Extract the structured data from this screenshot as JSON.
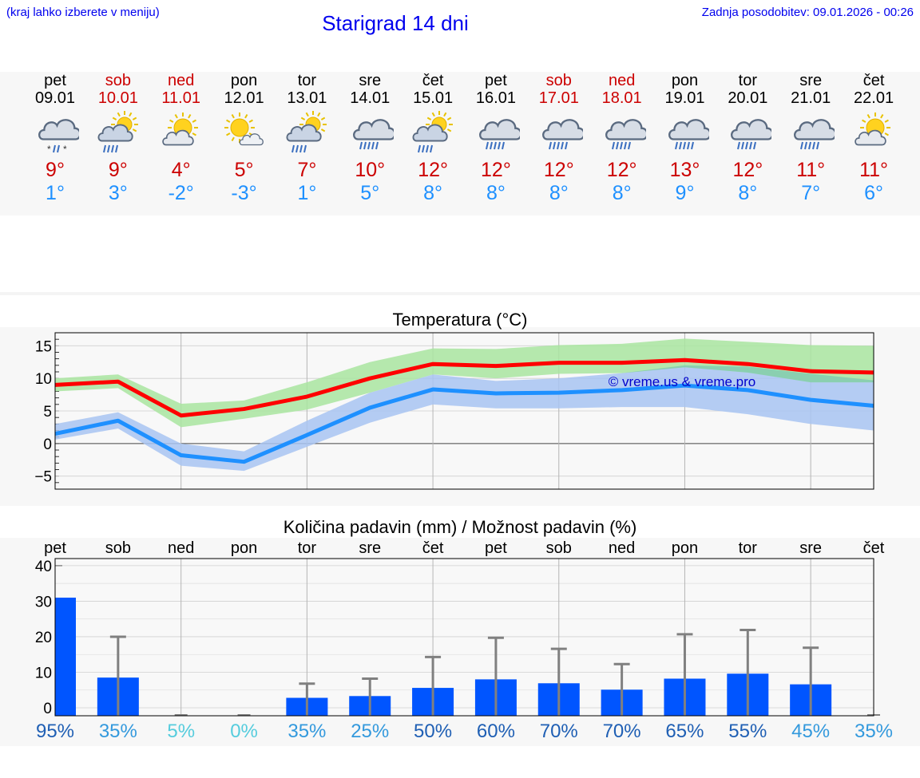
{
  "header": {
    "note_left": "(kraj lahko izberete v meniju)",
    "title": "Starigrad 14 dni",
    "note_right": "Zadnja posodobitev: 09.01.2026 - 00:26"
  },
  "days": [
    {
      "name": "pet",
      "date": "09.01",
      "tmax": "9°",
      "tmin": "1°",
      "weekend": false,
      "icon": "cloud-snow-rain-icon"
    },
    {
      "name": "sob",
      "date": "10.01",
      "tmax": "9°",
      "tmin": "3°",
      "weekend": true,
      "icon": "sun-cloud-rain-icon"
    },
    {
      "name": "ned",
      "date": "11.01",
      "tmax": "4°",
      "tmin": "-2°",
      "weekend": true,
      "icon": "sun-cloud-icon"
    },
    {
      "name": "pon",
      "date": "12.01",
      "tmax": "5°",
      "tmin": "-3°",
      "weekend": false,
      "icon": "sun-small-cloud-icon"
    },
    {
      "name": "tor",
      "date": "13.01",
      "tmax": "7°",
      "tmin": "1°",
      "weekend": false,
      "icon": "sun-cloud-rain-icon"
    },
    {
      "name": "sre",
      "date": "14.01",
      "tmax": "10°",
      "tmin": "5°",
      "weekend": false,
      "icon": "cloud-rain-icon"
    },
    {
      "name": "čet",
      "date": "15.01",
      "tmax": "12°",
      "tmin": "8°",
      "weekend": false,
      "icon": "sun-cloud-rain-icon"
    },
    {
      "name": "pet",
      "date": "16.01",
      "tmax": "12°",
      "tmin": "8°",
      "weekend": false,
      "icon": "cloud-rain-icon"
    },
    {
      "name": "sob",
      "date": "17.01",
      "tmax": "12°",
      "tmin": "8°",
      "weekend": true,
      "icon": "cloud-rain-icon"
    },
    {
      "name": "ned",
      "date": "18.01",
      "tmax": "12°",
      "tmin": "8°",
      "weekend": true,
      "icon": "cloud-rain-icon"
    },
    {
      "name": "pon",
      "date": "19.01",
      "tmax": "13°",
      "tmin": "9°",
      "weekend": false,
      "icon": "cloud-rain-icon"
    },
    {
      "name": "tor",
      "date": "20.01",
      "tmax": "12°",
      "tmin": "8°",
      "weekend": false,
      "icon": "cloud-rain-icon"
    },
    {
      "name": "sre",
      "date": "21.01",
      "tmax": "11°",
      "tmin": "7°",
      "weekend": false,
      "icon": "cloud-rain-icon"
    },
    {
      "name": "čet",
      "date": "22.01",
      "tmax": "11°",
      "tmin": "6°",
      "weekend": false,
      "icon": "sun-cloud-icon"
    }
  ],
  "colors": {
    "max_line": "#ff0000",
    "min_line": "#1e90ff",
    "max_band": "#a9e5a0",
    "min_band": "#a8c4f2",
    "overlap_band": "#7cc7b0",
    "precip_bar": "#0055ff",
    "error_bar": "#808080",
    "pct_high": "#1f5fb4",
    "pct_mid": "#3399dd",
    "pct_low": "#55ccdd"
  },
  "chart_data": [
    {
      "type": "line",
      "title": "Temperatura (°C)",
      "xlabel": "",
      "ylabel": "",
      "x": [
        "09.01",
        "10.01",
        "11.01",
        "12.01",
        "13.01",
        "14.01",
        "15.01",
        "16.01",
        "17.01",
        "18.01",
        "19.01",
        "20.01",
        "21.01",
        "22.01"
      ],
      "ylim": [
        -7,
        17
      ],
      "yticks": [
        -5,
        0,
        5,
        10,
        15
      ],
      "ytick_labels": [
        "−5",
        "0",
        "5",
        "10",
        "15"
      ],
      "grid": true,
      "watermark": "© vreme.us & vreme.pro",
      "series": [
        {
          "name": "max",
          "values": [
            9,
            9.5,
            4.3,
            5.3,
            7.2,
            10,
            12.2,
            11.9,
            12.4,
            12.4,
            12.8,
            12.2,
            11.1,
            10.9
          ],
          "band_low": [
            8,
            8.5,
            2.5,
            3.8,
            5.2,
            7.8,
            10.6,
            10,
            10.7,
            10.8,
            11.7,
            10.9,
            9.4,
            9.4
          ],
          "band_high": [
            10,
            10.6,
            6.1,
            6.6,
            9.4,
            12.5,
            14.6,
            14.5,
            15.1,
            15.3,
            16.1,
            15.6,
            15.1,
            15
          ]
        },
        {
          "name": "min",
          "values": [
            1.5,
            3.5,
            -1.8,
            -2.8,
            1.3,
            5.5,
            8.3,
            7.7,
            7.8,
            8.2,
            8.9,
            8.2,
            6.7,
            5.8
          ],
          "band_low": [
            0.6,
            2.3,
            -3.4,
            -4.2,
            -0.5,
            3.2,
            6,
            5.4,
            5.4,
            5.6,
            5.6,
            4.5,
            3,
            2
          ],
          "band_high": [
            3,
            4.8,
            0,
            -1.2,
            3.5,
            7.8,
            10.6,
            9.6,
            10,
            10.8,
            12,
            11.8,
            10.7,
            9.7
          ]
        }
      ]
    },
    {
      "type": "bar",
      "title": "Količina padavin (mm) / Možnost padavin (%)",
      "categories": [
        "pet",
        "sob",
        "ned",
        "pon",
        "tor",
        "sre",
        "čet",
        "pet",
        "sob",
        "ned",
        "pon",
        "tor",
        "sre",
        "čet"
      ],
      "values": [
        31,
        8.5,
        0,
        0,
        2.8,
        3.3,
        5.6,
        8,
        6.9,
        5.1,
        8.2,
        9.6,
        6.6,
        0
      ],
      "error_high": [
        null,
        20,
        0,
        0,
        6.8,
        8.2,
        14.3,
        19.7,
        16.6,
        12.3,
        20.7,
        21.9,
        16.9,
        0
      ],
      "ylim": [
        0,
        42
      ],
      "yticks": [
        0,
        10,
        20,
        30,
        40
      ],
      "ytick_labels": [
        "0",
        "10",
        "20",
        "30",
        "40"
      ],
      "grid": true,
      "probability": [
        "95%",
        "35%",
        "5%",
        "0%",
        "35%",
        "25%",
        "50%",
        "60%",
        "70%",
        "70%",
        "65%",
        "55%",
        "45%",
        "35%"
      ],
      "probability_level": [
        "high",
        "mid",
        "low",
        "low",
        "mid",
        "mid",
        "high",
        "high",
        "high",
        "high",
        "high",
        "high",
        "mid",
        "mid"
      ]
    }
  ]
}
